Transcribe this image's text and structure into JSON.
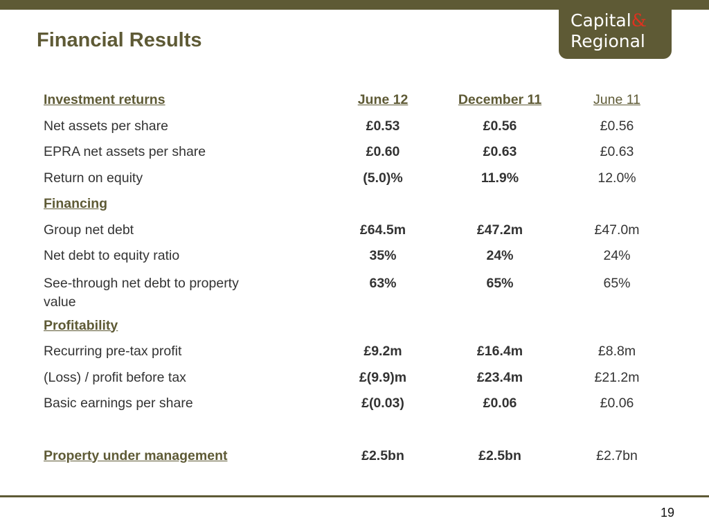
{
  "slide": {
    "title": "Financial Results",
    "page_number": "19"
  },
  "logo": {
    "line1": "Capital",
    "ampersand": "&",
    "line2": "Regional"
  },
  "colors": {
    "accent": "#5e5a35",
    "logo_ampersand": "#e0311f"
  },
  "table": {
    "header": {
      "label": "Investment returns",
      "columns": [
        "June 12",
        "December 11",
        "June 11"
      ]
    },
    "rows": [
      {
        "type": "data",
        "label": "Net assets per share",
        "values": [
          "£0.53",
          "£0.56",
          "£0.56"
        ]
      },
      {
        "type": "data",
        "label": "EPRA net assets per share",
        "values": [
          "£0.60",
          "£0.63",
          "£0.63"
        ]
      },
      {
        "type": "data",
        "label": "Return on equity",
        "values": [
          "(5.0)%",
          "11.9%",
          "12.0%"
        ]
      },
      {
        "type": "section",
        "label": "Financing"
      },
      {
        "type": "data",
        "label": "Group net debt",
        "values": [
          "£64.5m",
          "£47.2m",
          "£47.0m"
        ]
      },
      {
        "type": "data",
        "label": "Net debt to equity ratio",
        "values": [
          "35%",
          "24%",
          "24%"
        ]
      },
      {
        "type": "data",
        "label": "See-through net debt to property value",
        "values": [
          "63%",
          "65%",
          "65%"
        ]
      },
      {
        "type": "section",
        "label": "Profitability"
      },
      {
        "type": "data",
        "label": "Recurring pre-tax profit",
        "values": [
          "£9.2m",
          "£16.4m",
          "£8.8m"
        ]
      },
      {
        "type": "data",
        "label": "(Loss) / profit before tax",
        "values": [
          "£(9.9)m",
          "£23.4m",
          "£21.2m"
        ]
      },
      {
        "type": "data",
        "label": "Basic earnings per share",
        "values": [
          "£(0.03)",
          "£0.06",
          "£0.06"
        ]
      },
      {
        "type": "section-data",
        "label": "Property under management",
        "values": [
          "£2.5bn",
          "£2.5bn",
          "£2.7bn"
        ]
      }
    ]
  }
}
